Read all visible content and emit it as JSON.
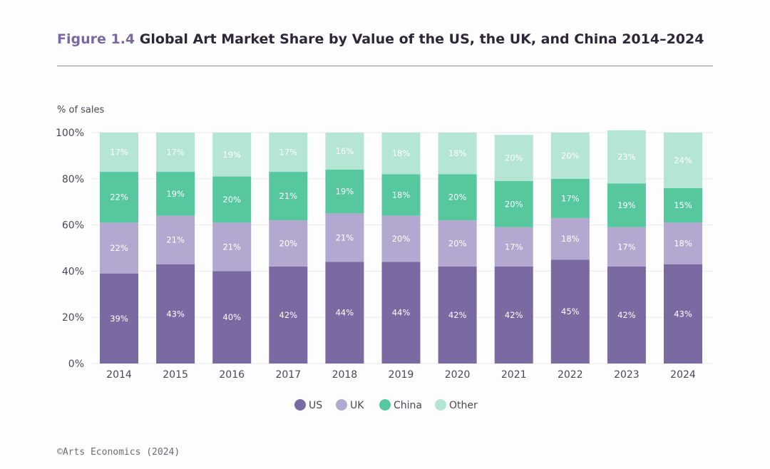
{
  "header": {
    "figure_label": "Figure 1.4",
    "title": "Global Art Market Share by Value of the US, the UK, and China 2014–2024"
  },
  "footer": {
    "credit": "©Arts Economics (2024)"
  },
  "colors": {
    "US": "#7b69a2",
    "UK": "#b3a8cf",
    "China": "#57c79e",
    "Other": "#b5e5d5",
    "grid": "#ebeaf0"
  },
  "chart_data": {
    "type": "bar",
    "stacked": true,
    "title": "Global Art Market Share by Value of the US, the UK, and China 2014–2024",
    "ylabel": "% of sales",
    "xlabel": "",
    "ylim": [
      0,
      100
    ],
    "yticks": [
      "0%",
      "20%",
      "40%",
      "60%",
      "80%",
      "100%"
    ],
    "categories": [
      "2014",
      "2015",
      "2016",
      "2017",
      "2018",
      "2019",
      "2020",
      "2021",
      "2022",
      "2023",
      "2024"
    ],
    "series": [
      {
        "name": "US",
        "values": [
          39,
          43,
          40,
          42,
          44,
          44,
          42,
          42,
          45,
          42,
          43
        ]
      },
      {
        "name": "UK",
        "values": [
          22,
          21,
          21,
          20,
          21,
          20,
          20,
          17,
          18,
          17,
          18
        ]
      },
      {
        "name": "China",
        "values": [
          22,
          19,
          20,
          21,
          19,
          18,
          20,
          20,
          17,
          19,
          15
        ]
      },
      {
        "name": "Other",
        "values": [
          17,
          17,
          19,
          17,
          16,
          18,
          18,
          20,
          20,
          23,
          24
        ]
      }
    ],
    "legend": [
      "US",
      "UK",
      "China",
      "Other"
    ],
    "legend_position": "bottom-center"
  }
}
